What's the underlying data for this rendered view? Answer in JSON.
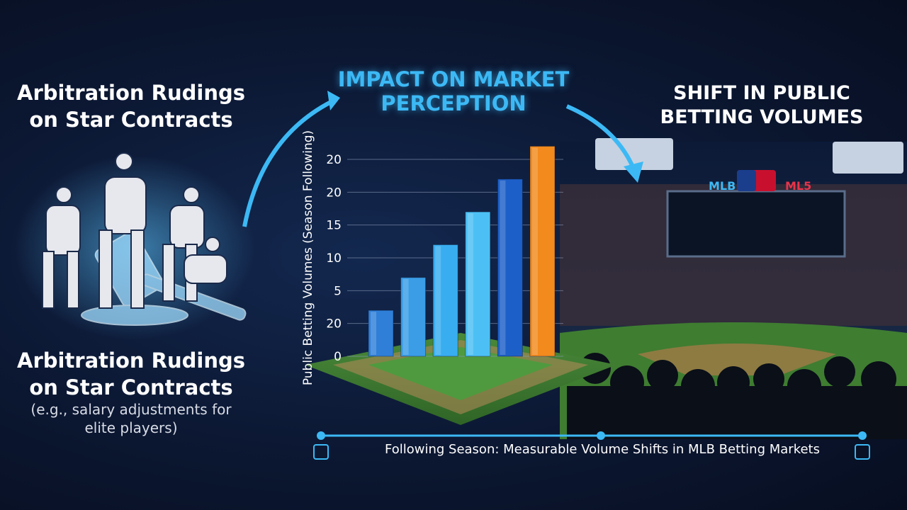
{
  "chart_data": {
    "type": "bar",
    "title": "IMPACT ON MARKET PERCEPTION",
    "y_label": "Public Betting Volumes (Season Following)",
    "categories": [
      null,
      null,
      null,
      null,
      null,
      null
    ],
    "values": [
      7,
      12,
      17,
      22,
      27,
      32
    ],
    "colors": [
      "#2f7fd8",
      "#3a9de6",
      "#38aef0",
      "#4cc0f5",
      "#1d5fc8",
      "#f28a1e"
    ],
    "ylim": [
      0,
      33
    ],
    "yticks": [
      0,
      {
        "value": 5,
        "label": "20"
      },
      {
        "value": 10,
        "label": "5"
      },
      {
        "value": 15,
        "label": "10"
      },
      {
        "value": 20,
        "label": "15"
      },
      {
        "value": 25,
        "label": "20"
      },
      {
        "value": 30,
        "label": "20"
      }
    ],
    "grid": true
  },
  "left_panel": {
    "title": "Arbitration Rudings on Star Contracts",
    "heading": "Arbitration Rudings on Star Contracts",
    "note": "(e.g., salary adjustments for elite players)"
  },
  "right_panel": {
    "title": "SHIFT IN PUBLIC BETTING VOLUMES",
    "scoreboard": [
      "MLB",
      "ML5"
    ]
  },
  "footer": {
    "caption": "Following Season: Measurable Volume Shifts in MLB Betting Markets"
  }
}
